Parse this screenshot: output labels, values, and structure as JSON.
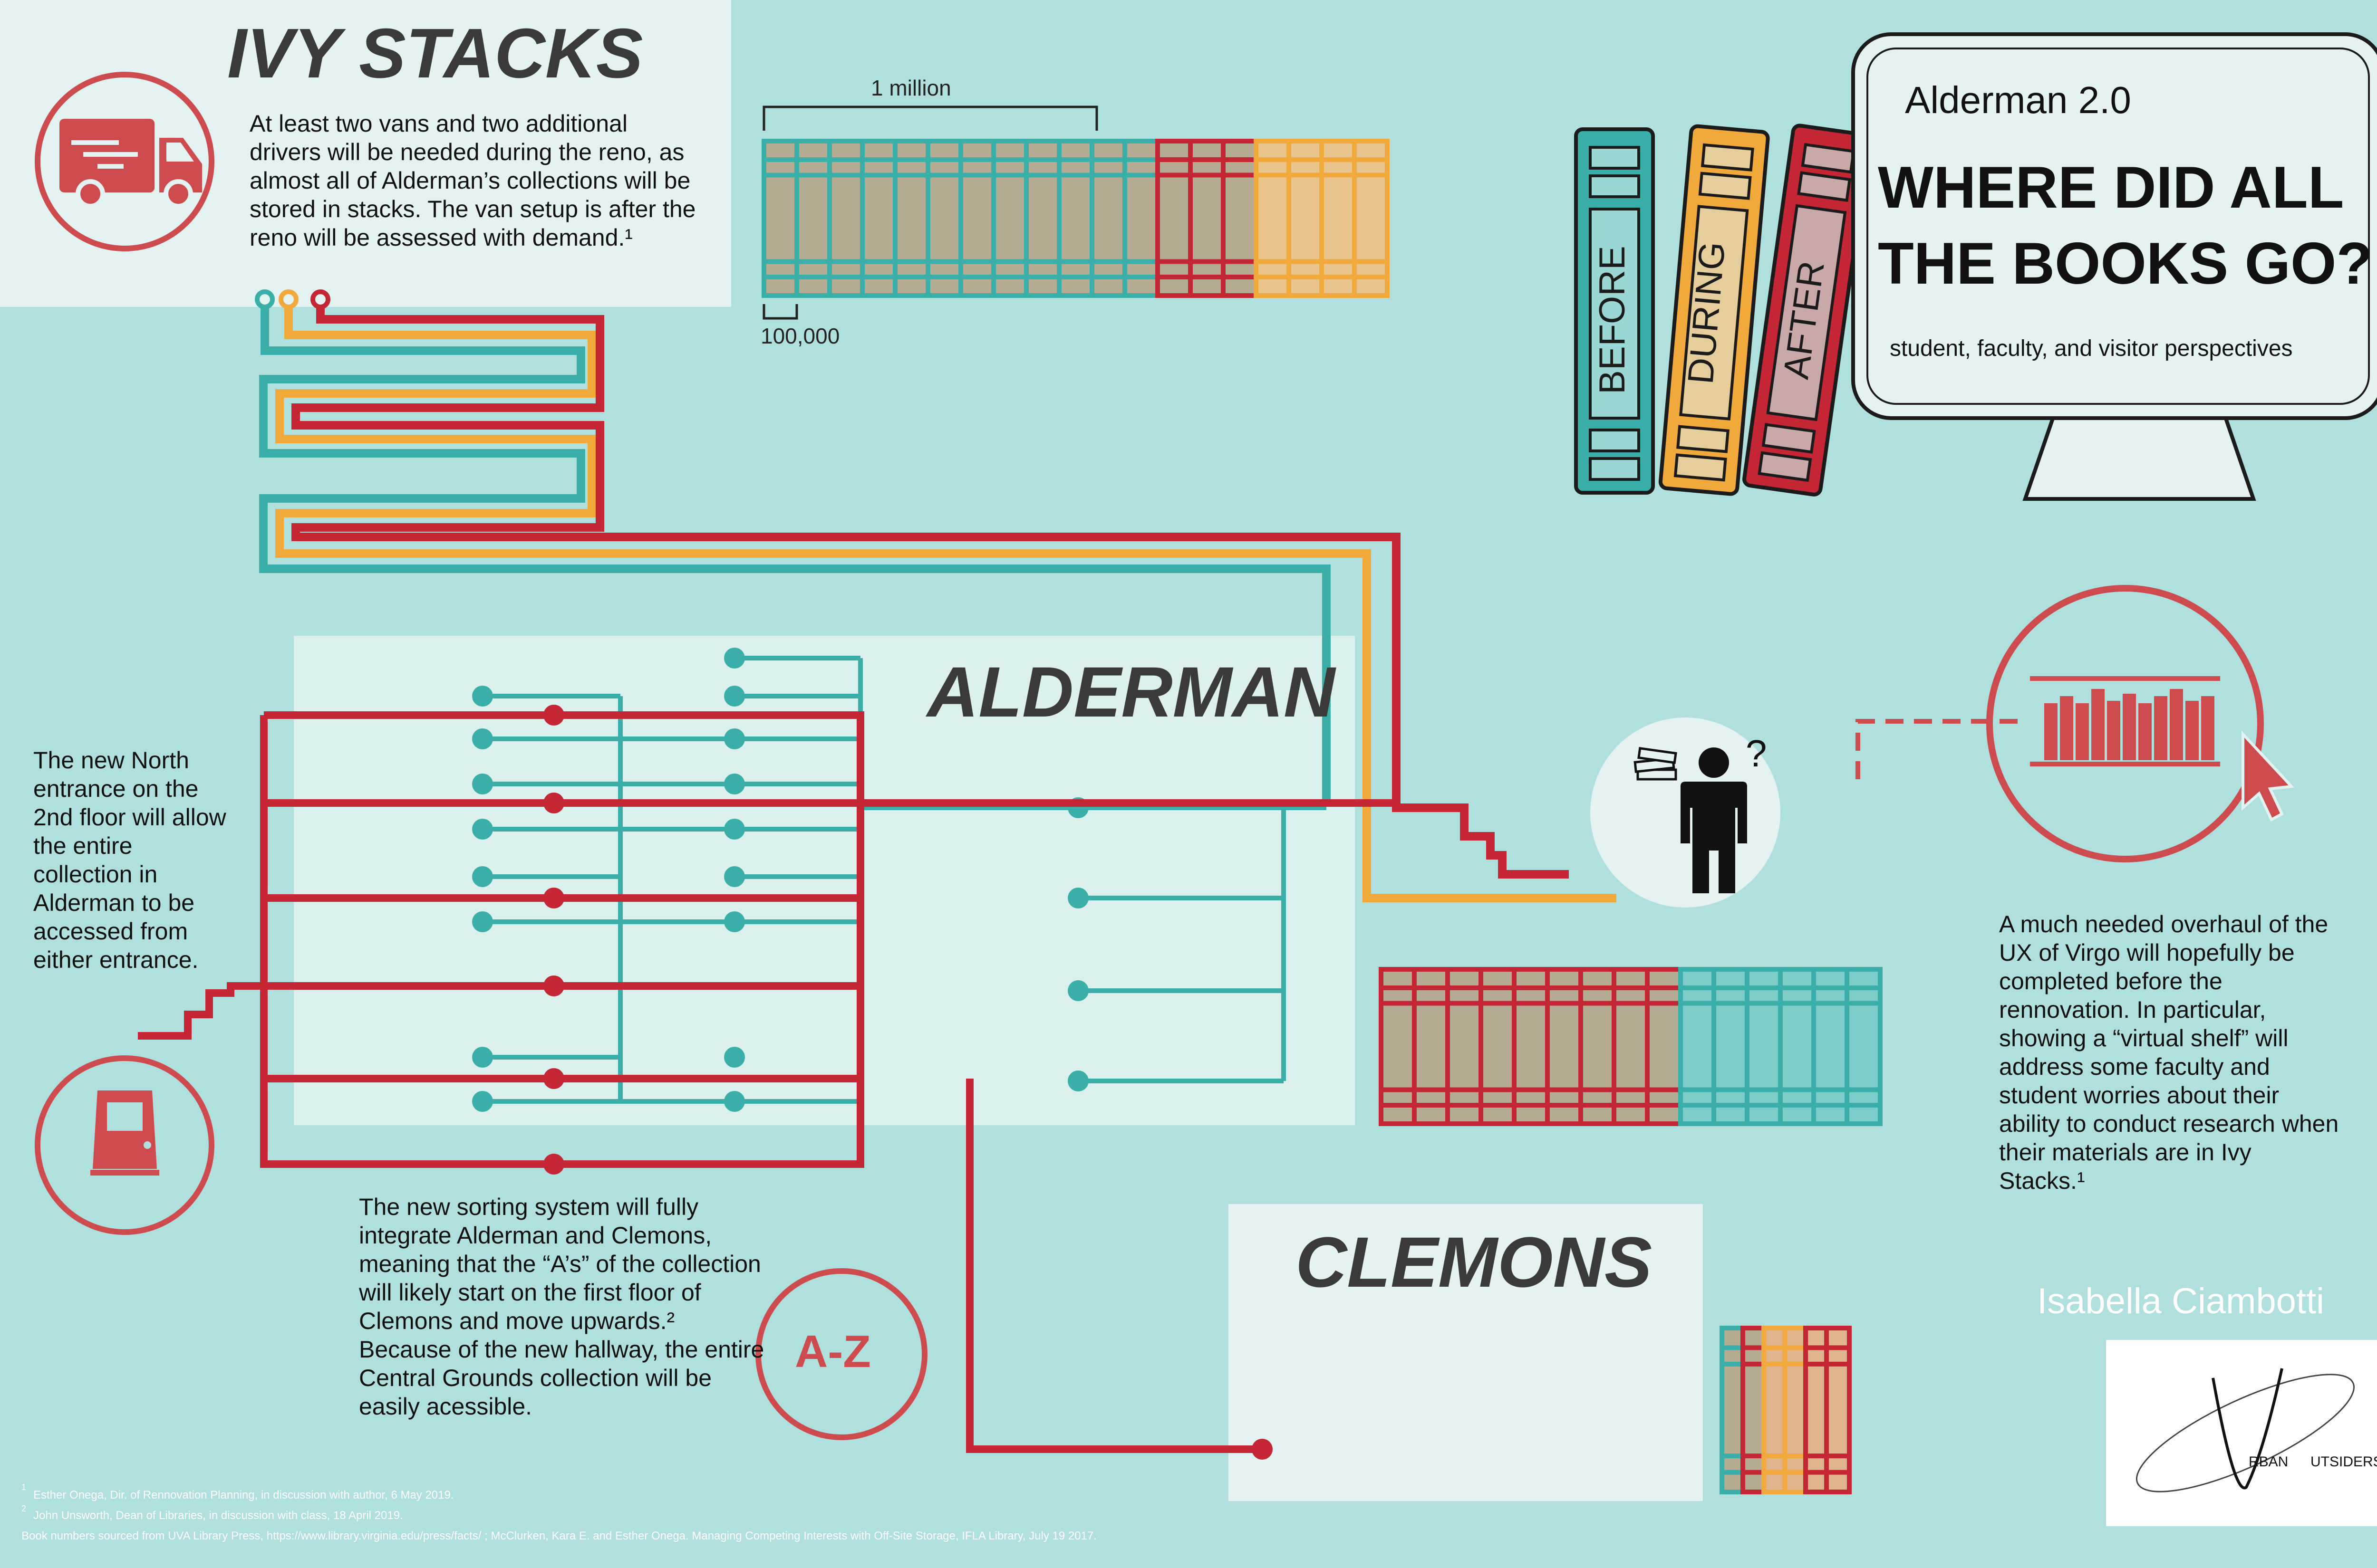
{
  "colors": {
    "background": "#afe0de",
    "panel": "#e4f2f1",
    "red": "#c42634",
    "teal": "#3aafa9",
    "orange": "#f2a93b",
    "coral": "#cd4a4d",
    "book_fill": "#b5aa92"
  },
  "ivy_stacks": {
    "heading": "IVY STACKS",
    "text": "At least two vans and two additional drivers will be needed during the reno, as almost all of Alderman’s collections will be stored in stacks. The van setup is after the reno will be assessed with demand.¹",
    "icon": "delivery-truck-icon"
  },
  "scale": {
    "million_label": "1 million",
    "hundred_thousand_label": "100,000"
  },
  "books": {
    "before": "BEFORE",
    "during": "DURING",
    "after": "AFTER"
  },
  "title": {
    "small": "Alderman 2.0",
    "line1": "WHERE DID ALL",
    "line2": "THE BOOKS GO?",
    "subtitle": "student, faculty, and visitor perspectives",
    "icon": "computer-monitor-icon"
  },
  "alderman": {
    "heading": "ALDERMAN"
  },
  "clemons": {
    "heading": "CLEMONS"
  },
  "north_entrance": {
    "text": "The new North entrance on the 2nd floor will allow the entire collection in Alderman to be accessed from either entrance.",
    "icon": "door-icon"
  },
  "sorting": {
    "text": "The new sorting system will fully integrate Alderman and Clemons, meaning that the “A’s” of the collection will likely start on the first floor of Clemons and move upwards.² Because of the new hallway, the entire Central Grounds collection will be easily acessible.",
    "badge": "A-Z"
  },
  "virgo": {
    "text": "A much needed overhaul of the UX of Virgo will hopefully be completed before the rennovation. In particular, showing a “virtual shelf” will address some faculty and student worries about their ability to conduct research when their materials are in Ivy Stacks.¹",
    "icon": "virtual-shelf-cursor-icon"
  },
  "person": {
    "question_mark": "?",
    "icon": "person-with-books-icon"
  },
  "author": "Isabella Ciambotti",
  "logo": {
    "first": "RBAN",
    "second": "UTSIDERS"
  },
  "footnotes": {
    "one_mark": "1",
    "one": "Esther Onega, Dir. of Rennovation Planning, in discussion with author, 6 May 2019.",
    "two_mark": "2",
    "two": "John Unsworth, Dean of Libraries, in discussion with class, 18 April 2019.",
    "three": "Book numbers sourced from UVA Library Press, https://www.library.virginia.edu/press/facts/ ; McClurken, Kara E. and Esther Onega. Managing Competing Interests with Off-Site Storage, IFLA Library, July 19 2017."
  }
}
